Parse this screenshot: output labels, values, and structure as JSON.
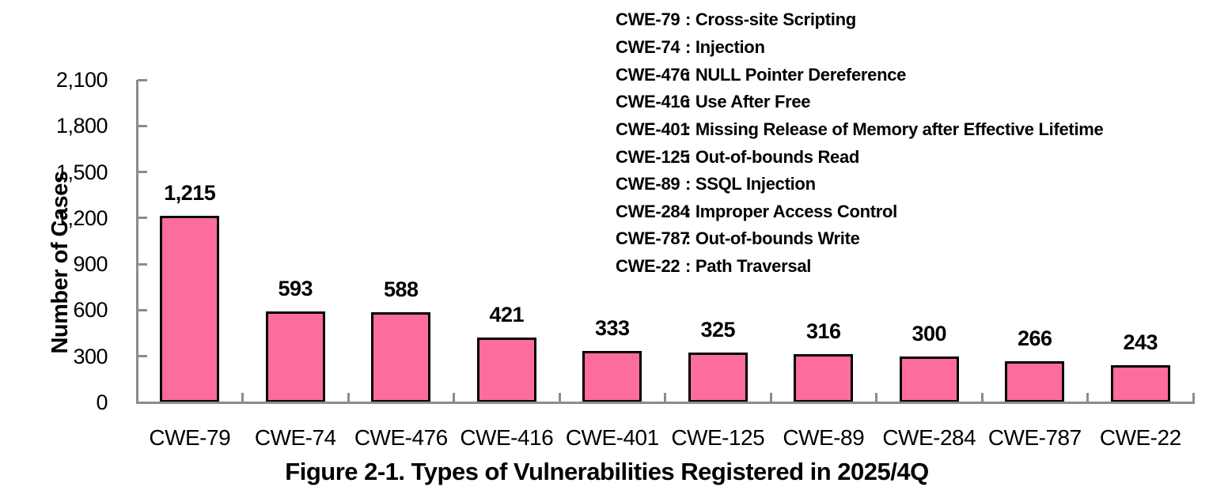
{
  "chart_data": {
    "type": "bar",
    "title": "Figure 2-1. Types of Vulnerabilities Registered in 2025/4Q",
    "ylabel": "Number of Cases",
    "xlabel": "",
    "categories": [
      "CWE-79",
      "CWE-74",
      "CWE-476",
      "CWE-416",
      "CWE-401",
      "CWE-125",
      "CWE-89",
      "CWE-284",
      "CWE-787",
      "CWE-22"
    ],
    "values": [
      1215,
      593,
      588,
      421,
      333,
      325,
      316,
      300,
      266,
      243
    ],
    "value_labels": [
      "1,215",
      "593",
      "588",
      "421",
      "333",
      "325",
      "316",
      "300",
      "266",
      "243"
    ],
    "ylim": [
      0,
      2100
    ],
    "ytick_interval": 300,
    "ytick_labels": [
      "0",
      "300",
      "600",
      "900",
      "1,200",
      "1,500",
      "1,800",
      "2,100"
    ],
    "grid": false,
    "legend_position": "top-right",
    "legend_separator": ":",
    "legend": [
      {
        "code": "CWE-79",
        "desc": "Cross-site Scripting"
      },
      {
        "code": "CWE-74",
        "desc": "Injection"
      },
      {
        "code": "CWE-476",
        "desc": "NULL Pointer Dereference"
      },
      {
        "code": "CWE-416",
        "desc": "Use After Free"
      },
      {
        "code": "CWE-401",
        "desc": "Missing Release of Memory after Effective Lifetime"
      },
      {
        "code": "CWE-125",
        "desc": "Out-of-bounds Read"
      },
      {
        "code": "CWE-89",
        "desc": "SSQL Injection"
      },
      {
        "code": "CWE-284",
        "desc": "Improper Access Control"
      },
      {
        "code": "CWE-787",
        "desc": "Out-of-bounds Write"
      },
      {
        "code": "CWE-22",
        "desc": "Path Traversal"
      }
    ],
    "colors": {
      "bar_fill": "#FC6C9C",
      "bar_border": "#000000",
      "axis": "#8C8C8C",
      "text": "#000000",
      "background": "#FFFFFF"
    }
  }
}
